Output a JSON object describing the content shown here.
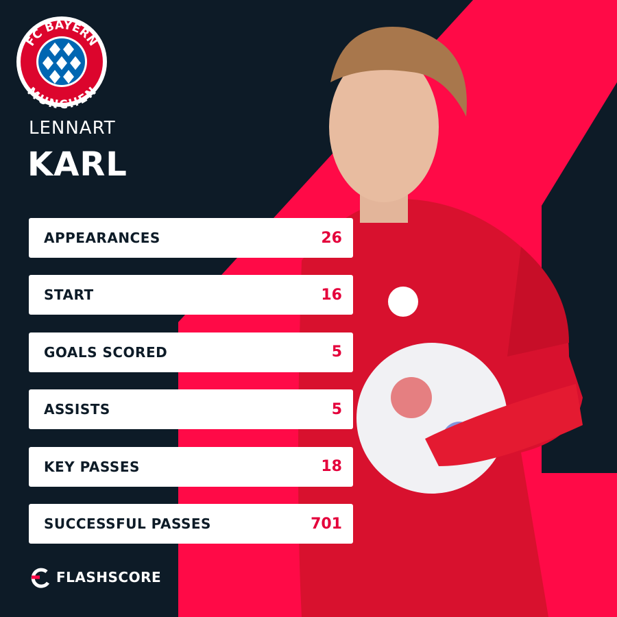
{
  "badge": {
    "top": "FC BAYERN",
    "bottom": "MUNCHEN"
  },
  "player": {
    "first_name": "LENNART",
    "last_name": "KARL"
  },
  "stats": [
    {
      "label": "APPEARANCES",
      "value": 26
    },
    {
      "label": "START",
      "value": 16
    },
    {
      "label": "GOALS SCORED",
      "value": 5
    },
    {
      "label": "ASSISTS",
      "value": 5
    },
    {
      "label": "KEY PASSES",
      "value": 18
    },
    {
      "label": "SUCCESSFUL PASSES",
      "value": 701
    }
  ],
  "brand": "FLASHSCORE"
}
